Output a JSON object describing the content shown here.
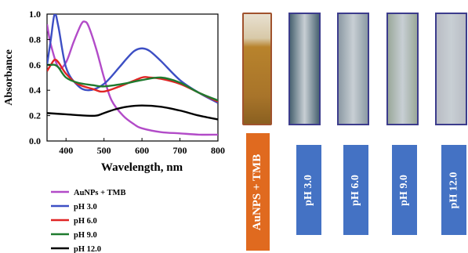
{
  "chart_data": {
    "type": "line",
    "xlabel": "Wavelength, nm",
    "ylabel": "Absorbance",
    "xlim": [
      350,
      800
    ],
    "ylim": [
      0,
      1.0
    ],
    "xticks": [
      400,
      500,
      600,
      700,
      800
    ],
    "yticks": [
      0.0,
      0.2,
      0.4,
      0.6,
      0.8,
      1.0
    ],
    "grid": false,
    "legend_position": "below",
    "series": [
      {
        "name": "AuNPs + TMB",
        "color": "#b24bc8",
        "x": [
          350,
          360,
          380,
          400,
          420,
          440,
          450,
          460,
          480,
          500,
          520,
          550,
          580,
          600,
          650,
          700,
          750,
          800
        ],
        "y": [
          0.92,
          0.76,
          0.58,
          0.62,
          0.78,
          0.92,
          0.94,
          0.9,
          0.72,
          0.5,
          0.32,
          0.2,
          0.13,
          0.1,
          0.07,
          0.06,
          0.05,
          0.05
        ]
      },
      {
        "name": "pH 3.0",
        "color": "#3d4fc4",
        "x": [
          350,
          360,
          370,
          380,
          400,
          430,
          460,
          500,
          540,
          560,
          580,
          600,
          620,
          650,
          700,
          750,
          800
        ],
        "y": [
          0.6,
          0.8,
          1.0,
          0.9,
          0.58,
          0.44,
          0.4,
          0.45,
          0.58,
          0.65,
          0.71,
          0.73,
          0.71,
          0.63,
          0.48,
          0.38,
          0.3
        ]
      },
      {
        "name": "pH 6.0",
        "color": "#e02424",
        "x": [
          350,
          360,
          370,
          380,
          400,
          430,
          470,
          500,
          550,
          600,
          620,
          650,
          700,
          750,
          800
        ],
        "y": [
          0.55,
          0.6,
          0.64,
          0.62,
          0.53,
          0.45,
          0.41,
          0.39,
          0.44,
          0.5,
          0.5,
          0.49,
          0.45,
          0.38,
          0.31
        ]
      },
      {
        "name": "pH 9.0",
        "color": "#1f7a2e",
        "x": [
          350,
          360,
          370,
          380,
          400,
          430,
          470,
          500,
          550,
          600,
          650,
          700,
          750,
          800
        ],
        "y": [
          0.6,
          0.6,
          0.6,
          0.58,
          0.5,
          0.46,
          0.44,
          0.43,
          0.45,
          0.48,
          0.5,
          0.46,
          0.38,
          0.32
        ]
      },
      {
        "name": "pH 12.0",
        "color": "#000000",
        "x": [
          350,
          400,
          450,
          480,
          500,
          530,
          560,
          600,
          650,
          700,
          750,
          800
        ],
        "y": [
          0.22,
          0.21,
          0.2,
          0.2,
          0.22,
          0.25,
          0.27,
          0.28,
          0.27,
          0.24,
          0.2,
          0.17
        ]
      }
    ]
  },
  "samples": [
    {
      "label": "AuNPS + TMB",
      "photo_color": "#b8832c",
      "frame_color": "#a0522d",
      "label_box_color": "#e06a1f"
    },
    {
      "label": "pH 3.0",
      "photo_color": "#4a6472",
      "frame_color": "#3c3c8c",
      "label_box_color": "#4472c4"
    },
    {
      "label": "pH 6.0",
      "photo_color": "#8c9aa4",
      "frame_color": "#3c3c8c",
      "label_box_color": "#4472c4"
    },
    {
      "label": "pH 9.0",
      "photo_color": "#9aa89a",
      "frame_color": "#3c3c8c",
      "label_box_color": "#4472c4"
    },
    {
      "label": "pH 12.0",
      "photo_color": "#b9bcc4",
      "frame_color": "#3c3c8c",
      "label_box_color": "#4472c4"
    }
  ]
}
